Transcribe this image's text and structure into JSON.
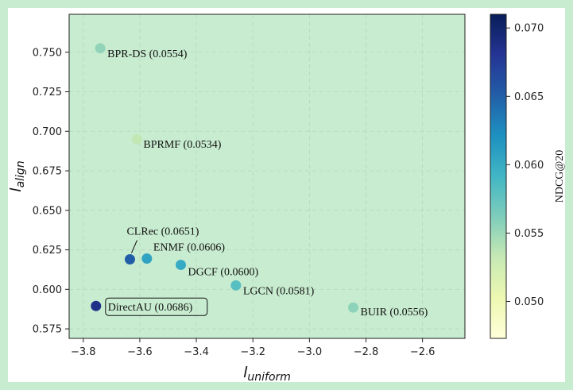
{
  "chart_data": {
    "type": "scatter",
    "xlabel": "l",
    "xlabel_sub": "uniform",
    "ylabel": "l",
    "ylabel_sub": "align",
    "xlim": [
      -3.85,
      -2.45
    ],
    "ylim": [
      0.569,
      0.774
    ],
    "xticks": [
      -3.8,
      -3.6,
      -3.4,
      -3.2,
      -3.0,
      -2.8,
      -2.6
    ],
    "xtick_labels": [
      "−3.8",
      "−3.6",
      "−3.4",
      "−3.2",
      "−3.0",
      "−2.8",
      "−2.6"
    ],
    "yticks": [
      0.575,
      0.6,
      0.625,
      0.65,
      0.675,
      0.7,
      0.725,
      0.75
    ],
    "ytick_labels": [
      "0.575",
      "0.600",
      "0.625",
      "0.650",
      "0.675",
      "0.700",
      "0.725",
      "0.750"
    ],
    "grid": true,
    "plot_background": "#c8ecd0",
    "points": [
      {
        "name": "BPR-DS",
        "x": -3.74,
        "y": 0.7525,
        "ndcg": 0.0554,
        "label": "BPR-DS (0.0554)"
      },
      {
        "name": "BPRMF",
        "x": -3.61,
        "y": 0.695,
        "ndcg": 0.0534,
        "label": "BPRMF (0.0534)"
      },
      {
        "name": "CLRec",
        "x": -3.635,
        "y": 0.619,
        "ndcg": 0.0651,
        "label": "CLRec (0.0651)"
      },
      {
        "name": "ENMF",
        "x": -3.575,
        "y": 0.6195,
        "ndcg": 0.0606,
        "label": "ENMF (0.0606)"
      },
      {
        "name": "DGCF",
        "x": -3.455,
        "y": 0.6155,
        "ndcg": 0.06,
        "label": "DGCF (0.0600)"
      },
      {
        "name": "LGCN",
        "x": -3.26,
        "y": 0.6025,
        "ndcg": 0.0581,
        "label": "LGCN (0.0581)"
      },
      {
        "name": "BUIR",
        "x": -2.845,
        "y": 0.5885,
        "ndcg": 0.0556,
        "label": "BUIR (0.0556)"
      },
      {
        "name": "DirectAU",
        "x": -3.755,
        "y": 0.5895,
        "ndcg": 0.0686,
        "label": "DirectAU (0.0686)",
        "boxed": true
      }
    ],
    "colorbar": {
      "label": "NDCG@20",
      "colormap": "YlGnBu",
      "range": [
        0.0473,
        0.071
      ],
      "ticks": [
        0.05,
        0.055,
        0.06,
        0.065,
        0.07
      ],
      "tick_labels": [
        "0.050",
        "0.055",
        "0.060",
        "0.065",
        "0.070"
      ]
    }
  }
}
